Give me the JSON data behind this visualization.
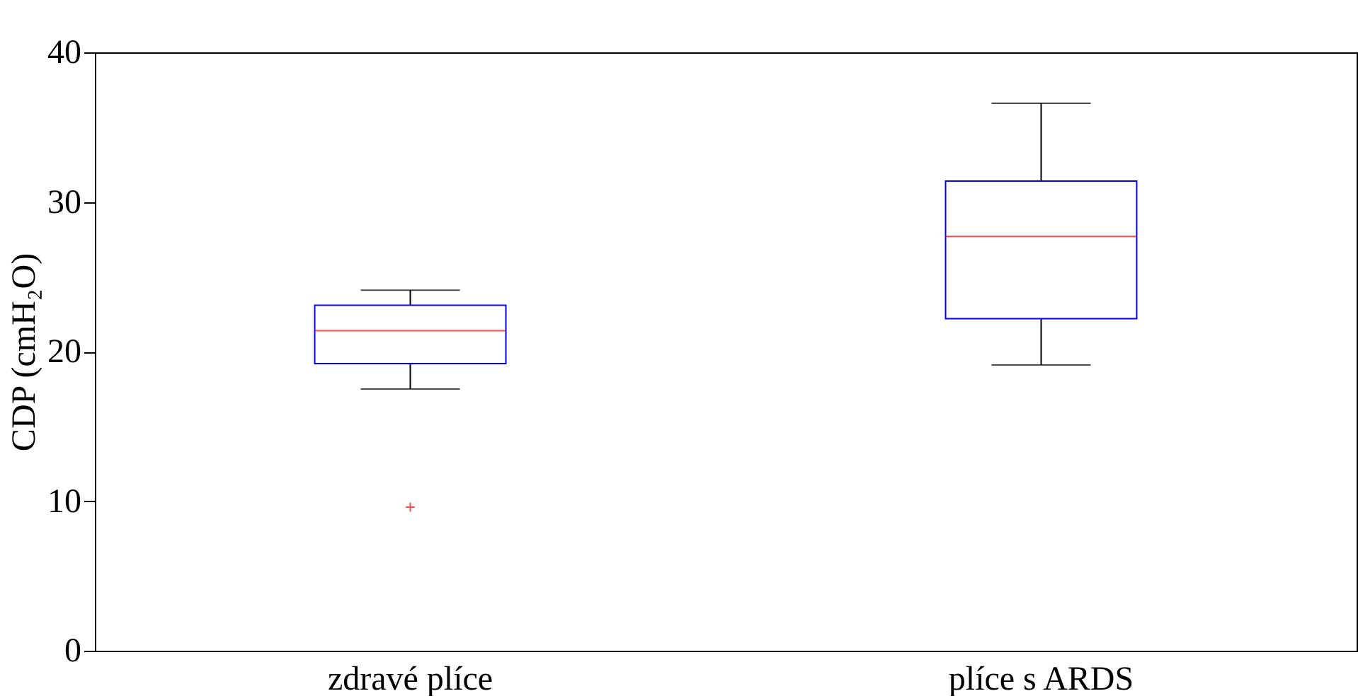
{
  "chart_data": {
    "type": "box",
    "ylabel": "CDP (cmH₂O)",
    "categories": [
      "zdravé plíce",
      "plíce s ARDS"
    ],
    "boxes": [
      {
        "low": 17.5,
        "q1": 19.2,
        "median": 21.4,
        "q3": 23.1,
        "high": 24.1,
        "outliers": [
          9.6
        ]
      },
      {
        "low": 19.1,
        "q1": 22.2,
        "median": 27.7,
        "q3": 31.4,
        "high": 36.6
      }
    ],
    "ylim": [
      0,
      40
    ],
    "yticks": [
      0,
      10,
      20,
      30,
      40
    ],
    "grid": false
  }
}
